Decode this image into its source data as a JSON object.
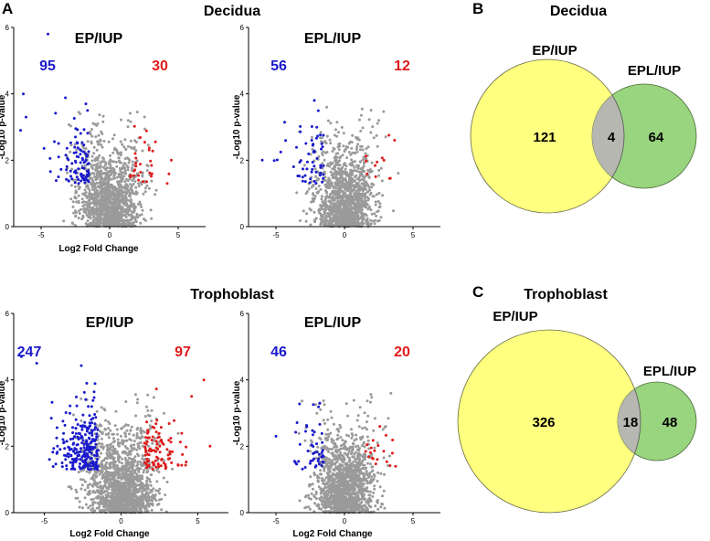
{
  "panels": {
    "A": "A",
    "B": "B",
    "C": "C"
  },
  "sections": {
    "decidua": "Decidua",
    "trophoblast": "Trophoblast"
  },
  "colors": {
    "down": "#1a1acc",
    "up": "#e01b1b",
    "ns": "#9a9a9a",
    "venn_large": "#ffff80",
    "venn_small": "#99d47f",
    "venn_overlap": "#b7b7b1"
  },
  "chart_data": [
    {
      "id": "decidua-ep",
      "type": "scatter",
      "title": "EP/IUP",
      "xlabel": "Log2 Fold Change",
      "ylabel": "-Log10 p-value",
      "xlim": [
        -7,
        7
      ],
      "ylim": [
        0,
        6
      ],
      "xticks": [
        -5,
        0,
        5
      ],
      "yticks": [
        0,
        2,
        4,
        6
      ],
      "down_count": "95",
      "up_count": "30",
      "down_n": 95,
      "up_n": 30,
      "ns_n": 1300,
      "outliers": [
        {
          "x": -4.5,
          "y": 5.8,
          "class": "down"
        },
        {
          "x": -6.3,
          "y": 4.0,
          "class": "down"
        },
        {
          "x": -6.1,
          "y": 3.3,
          "class": "down"
        },
        {
          "x": -6.5,
          "y": 2.9,
          "class": "down"
        },
        {
          "x": 4.5,
          "y": 2.0,
          "class": "up"
        },
        {
          "x": 4.2,
          "y": 1.3,
          "class": "up"
        }
      ],
      "seed": 11
    },
    {
      "id": "decidua-epl",
      "type": "scatter",
      "title": "EPL/IUP",
      "xlabel": "",
      "ylabel": "-Log10 p-value",
      "xlim": [
        -7,
        7
      ],
      "ylim": [
        0,
        6
      ],
      "xticks": [
        -5,
        0,
        5
      ],
      "yticks": [
        0,
        2,
        4,
        6
      ],
      "down_count": "56",
      "up_count": "12",
      "down_n": 56,
      "up_n": 12,
      "ns_n": 1300,
      "outliers": [
        {
          "x": -6.0,
          "y": 2.0,
          "class": "down"
        },
        {
          "x": -2.2,
          "y": 3.8,
          "class": "down"
        }
      ],
      "seed": 23
    },
    {
      "id": "trophoblast-ep",
      "type": "scatter",
      "title": "EP/IUP",
      "xlabel": "Log2 Fold Change",
      "ylabel": "-Log10 p-value",
      "xlim": [
        -7,
        7
      ],
      "ylim": [
        0,
        6
      ],
      "xticks": [
        -5,
        0,
        5
      ],
      "yticks": [
        0,
        2,
        4,
        6
      ],
      "down_count": "247",
      "up_count": "97",
      "down_n": 247,
      "up_n": 97,
      "ns_n": 1500,
      "outliers": [
        {
          "x": -6.5,
          "y": 4.7,
          "class": "down"
        },
        {
          "x": -5.5,
          "y": 4.5,
          "class": "down"
        },
        {
          "x": 5.4,
          "y": 4.0,
          "class": "up"
        },
        {
          "x": 4.6,
          "y": 3.5,
          "class": "up"
        },
        {
          "x": 5.8,
          "y": 2.0,
          "class": "up"
        }
      ],
      "seed": 37
    },
    {
      "id": "trophoblast-epl",
      "type": "scatter",
      "title": "EPL/IUP",
      "xlabel": "Log2 Fold Change",
      "ylabel": "-Log10 p-value",
      "xlim": [
        -7,
        7
      ],
      "ylim": [
        0,
        6
      ],
      "xticks": [
        -5,
        0,
        5
      ],
      "yticks": [
        0,
        2,
        4,
        6
      ],
      "down_count": "46",
      "up_count": "20",
      "down_n": 46,
      "up_n": 20,
      "ns_n": 1400,
      "outliers": [
        {
          "x": -5.0,
          "y": 2.3,
          "class": "down"
        },
        {
          "x": -1.8,
          "y": 3.3,
          "class": "down"
        }
      ],
      "seed": 51
    },
    {
      "id": "decidua-venn",
      "type": "venn",
      "title": "Decidua",
      "sets": [
        {
          "name": "EP/IUP",
          "only": "121"
        },
        {
          "name": "EPL/IUP",
          "only": "64"
        }
      ],
      "overlap": "4"
    },
    {
      "id": "trophoblast-venn",
      "type": "venn",
      "title": "Trophoblast",
      "sets": [
        {
          "name": "EP/IUP",
          "only": "326"
        },
        {
          "name": "EPL/IUP",
          "only": "48"
        }
      ],
      "overlap": "18"
    }
  ]
}
